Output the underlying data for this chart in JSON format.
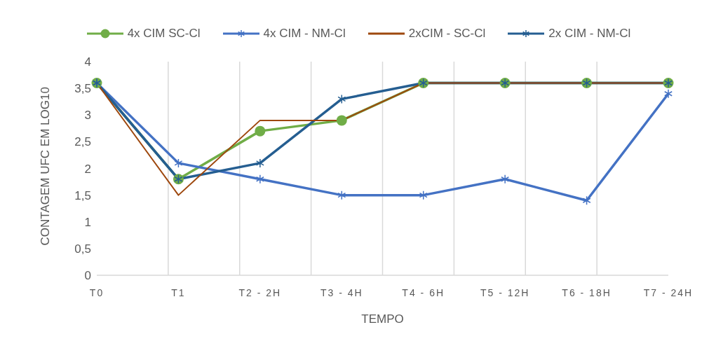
{
  "chart_data": {
    "type": "line",
    "categories": [
      "T0",
      "T1",
      "T2 - 2H",
      "T3 - 4H",
      "T4 - 6H",
      "T5 - 12H",
      "T6 - 18H",
      "T7 - 24H"
    ],
    "series": [
      {
        "name": "4x CIM SC-Cl",
        "color": "#70ad47",
        "marker": "circle",
        "values": [
          3.6,
          1.8,
          2.7,
          2.9,
          3.6,
          3.6,
          3.6,
          3.6
        ]
      },
      {
        "name": "4x CIM - NM-Cl",
        "color": "#4472c4",
        "marker": "cross",
        "values": [
          3.6,
          2.1,
          1.8,
          1.5,
          1.5,
          1.8,
          1.4,
          3.4
        ]
      },
      {
        "name": "2xCIM - SC-Cl",
        "color": "#9e480e",
        "marker": "none",
        "values": [
          3.6,
          1.5,
          2.9,
          2.9,
          3.6,
          3.6,
          3.6,
          3.6
        ]
      },
      {
        "name": "2x CIM - NM-Cl",
        "color": "#255e91",
        "marker": "cross",
        "values": [
          3.6,
          1.8,
          2.1,
          3.3,
          3.6,
          3.6,
          3.6,
          3.6
        ]
      }
    ],
    "xlabel": "TEMPO",
    "ylabel": "CONTAGEM UFC EM LOG10",
    "ylim": [
      0,
      4
    ],
    "yticks": [
      0,
      {
        "value": 0.5,
        "label": "0,5"
      },
      1,
      {
        "value": 1.5,
        "label": "1,5"
      },
      2,
      {
        "value": 2.5,
        "label": "2,5"
      },
      3,
      {
        "value": 3.5,
        "label": "3,5"
      },
      4
    ],
    "grid": "x",
    "legend": "top"
  }
}
